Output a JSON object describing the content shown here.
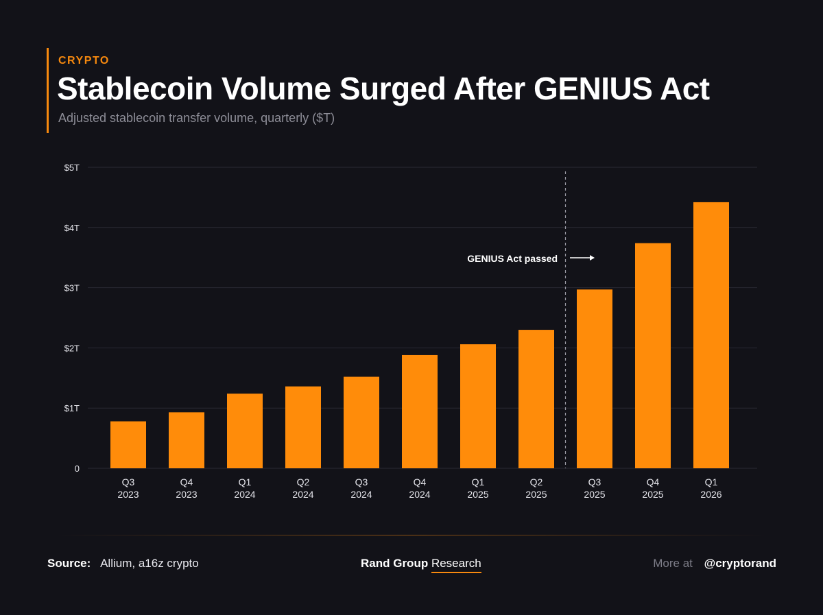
{
  "header": {
    "kicker": "CRYPTO",
    "title": "Stablecoin Volume Surged After GENIUS Act",
    "subtitle": "Adjusted stablecoin transfer volume, quarterly ($T)"
  },
  "colors": {
    "accent": "#f7890e",
    "bar": "#ff8c0a",
    "background": "#121218",
    "grid": "#2a2a33",
    "muted_text": "#8d8d97"
  },
  "chart_data": {
    "type": "bar",
    "title": "Stablecoin Volume Surged After GENIUS Act",
    "subtitle": "Adjusted stablecoin transfer volume, quarterly ($T)",
    "categories": [
      [
        "Q3",
        "2023"
      ],
      [
        "Q4",
        "2023"
      ],
      [
        "Q1",
        "2024"
      ],
      [
        "Q2",
        "2024"
      ],
      [
        "Q3",
        "2024"
      ],
      [
        "Q4",
        "2024"
      ],
      [
        "Q1",
        "2025"
      ],
      [
        "Q2",
        "2025"
      ],
      [
        "Q3",
        "2025"
      ],
      [
        "Q4",
        "2025"
      ],
      [
        "Q1",
        "2026"
      ]
    ],
    "values": [
      0.78,
      0.93,
      1.24,
      1.36,
      1.52,
      1.88,
      2.06,
      2.3,
      2.97,
      3.74,
      4.42
    ],
    "ylim": [
      0,
      5
    ],
    "yticks": [
      0,
      1,
      2,
      3,
      4,
      5
    ],
    "ytick_labels": [
      "0",
      "$1T",
      "$2T",
      "$3T",
      "$4T",
      "$5T"
    ],
    "grid": "horizontal",
    "legend": "none",
    "annotation": {
      "text": "GENIUS Act passed",
      "between_categories": [
        "Q2 2025",
        "Q3 2025"
      ],
      "style": "dashed vertical line with arrow"
    }
  },
  "footer": {
    "source_label": "Source:",
    "source_value": "Allium, a16z crypto",
    "brand_name": "Rand Group",
    "brand_sub": "Research",
    "more_label": "More at",
    "handle": "@cryptorand"
  }
}
